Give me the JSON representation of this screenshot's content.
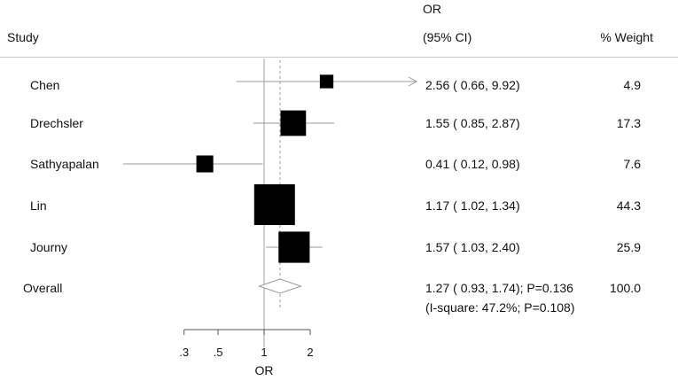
{
  "header": {
    "study": "Study",
    "or_line1": "OR",
    "or_line2": "(95% CI)",
    "weight": "% Weight"
  },
  "chart_data": {
    "type": "forest",
    "x_scale": "log",
    "xlabel": "OR",
    "xticks": [
      0.3,
      0.5,
      1,
      2
    ],
    "xtick_labels": [
      ".3",
      ".5",
      "1",
      "2"
    ],
    "null_value": 1,
    "studies": [
      {
        "name": "Chen",
        "or": 2.56,
        "lo": 0.66,
        "hi": 9.92,
        "ci_text": "2.56 ( 0.66, 9.92)",
        "weight": 4.9,
        "weight_text": "4.9"
      },
      {
        "name": "Drechsler",
        "or": 1.55,
        "lo": 0.85,
        "hi": 2.87,
        "ci_text": "1.55 ( 0.85, 2.87)",
        "weight": 17.3,
        "weight_text": "17.3"
      },
      {
        "name": "Sathyapalan",
        "or": 0.41,
        "lo": 0.12,
        "hi": 0.98,
        "ci_text": "0.41 ( 0.12, 0.98)",
        "weight": 7.6,
        "weight_text": "7.6"
      },
      {
        "name": "Lin",
        "or": 1.17,
        "lo": 1.02,
        "hi": 1.34,
        "ci_text": "1.17 ( 1.02, 1.34)",
        "weight": 44.3,
        "weight_text": "44.3"
      },
      {
        "name": "Journy",
        "or": 1.57,
        "lo": 1.03,
        "hi": 2.4,
        "ci_text": "1.57 ( 1.03, 2.40)",
        "weight": 25.9,
        "weight_text": "25.9"
      }
    ],
    "overall": {
      "name": "Overall",
      "or": 1.27,
      "lo": 0.93,
      "hi": 1.74,
      "ci_text": "1.27 ( 0.93, 1.74); P=0.136",
      "heterogeneity_text": "(I-square: 47.2%; P=0.108)",
      "weight_text": "100.0"
    },
    "colors": {
      "box": "#000000",
      "ci_line": "#9a9a9a",
      "null_line": "#b0b0b0",
      "overall_line": "#9a9a9a",
      "diamond": "#9a9a9a"
    }
  }
}
